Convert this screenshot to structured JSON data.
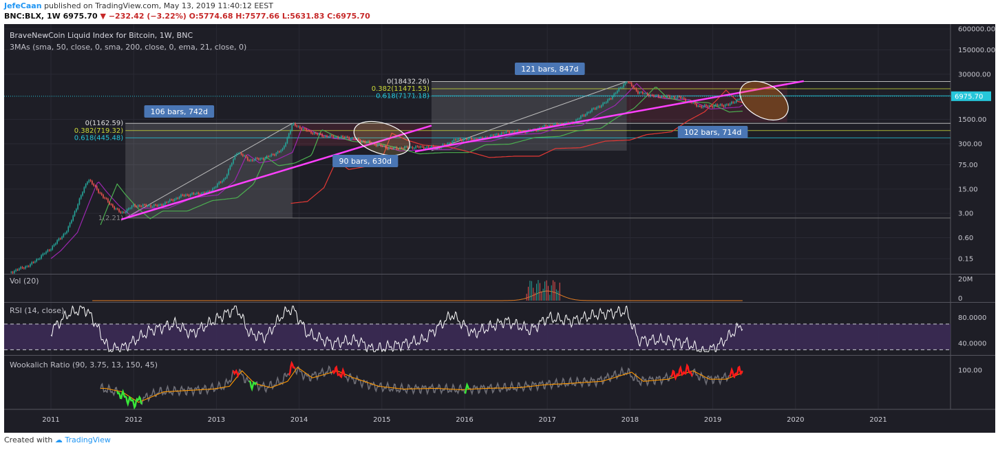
{
  "header": {
    "author": "JefeCaan",
    "published": "published on TradingView.com, May 13, 2019 11:40:12 EEST",
    "symbol": "BNC:BLX, 1W",
    "last": "6975.70",
    "change_arrow": "▼",
    "change": "−232.42 (−3.22%)",
    "ohlc": "O:5774.68 H:7577.66 L:5631.83 C:6975.70"
  },
  "footer": {
    "created_with": "Created with",
    "brand": "TradingView"
  },
  "colors": {
    "background": "#1e1e26",
    "grid": "#2a2a34",
    "text": "#c8c8d0",
    "bull": "#26a69a",
    "bear": "#ef5350",
    "sma50": "#4caf50",
    "sma200": "#e53935",
    "ema21": "#9c27b0",
    "trendline": "#ff40ff",
    "fib0": "#e0e0e0",
    "fib382": "#cddc39",
    "fib618": "#26c6da",
    "price_line": "#26c6da",
    "label_bg": "#4a76b4",
    "rsi_band": "#3b2a55",
    "vol": "#e67e22",
    "wook_grey": "#6e6e76",
    "wook_orange": "#ff9800",
    "wook_red": "#ff1a1a",
    "wook_green": "#39e639"
  },
  "chart_data": [
    {
      "type": "candlestick",
      "title": "BraveNewCoin Liquid Index for Bitcoin, 1W, BNC",
      "indicator_label": "3MAs (sma, 50, close, 0, sma, 200, close, 0, ema, 21, close, 0)",
      "scale": "log",
      "x_ticks": [
        "2011",
        "2012",
        "2013",
        "2014",
        "2015",
        "2016",
        "2017",
        "2018",
        "2019",
        "2020",
        "2021"
      ],
      "y_ticks": [
        "600000.00",
        "150000.00",
        "30000.00",
        "1500.00",
        "300.00",
        "75.00",
        "15.00",
        "3.00",
        "0.60",
        "0.15"
      ],
      "y_tick_values": [
        600000,
        150000,
        30000,
        1500,
        300,
        75,
        15,
        3,
        0.6,
        0.15
      ],
      "last_price_label": "6975.70",
      "last_price": 6975.7,
      "price_path": [
        [
          2010.5,
          0.06
        ],
        [
          2010.75,
          0.1
        ],
        [
          2011.0,
          0.3
        ],
        [
          2011.2,
          1.0
        ],
        [
          2011.35,
          8
        ],
        [
          2011.45,
          30
        ],
        [
          2011.55,
          15
        ],
        [
          2011.7,
          6
        ],
        [
          2011.85,
          3
        ],
        [
          2012.0,
          5
        ],
        [
          2012.3,
          5
        ],
        [
          2012.6,
          10
        ],
        [
          2012.9,
          12
        ],
        [
          2013.1,
          30
        ],
        [
          2013.25,
          180
        ],
        [
          2013.4,
          100
        ],
        [
          2013.6,
          120
        ],
        [
          2013.8,
          200
        ],
        [
          2013.92,
          1100
        ],
        [
          2014.1,
          700
        ],
        [
          2014.3,
          500
        ],
        [
          2014.6,
          450
        ],
        [
          2014.9,
          300
        ],
        [
          2015.1,
          220
        ],
        [
          2015.4,
          240
        ],
        [
          2015.7,
          240
        ],
        [
          2015.9,
          400
        ],
        [
          2016.2,
          420
        ],
        [
          2016.5,
          650
        ],
        [
          2016.8,
          700
        ],
        [
          2017.0,
          1000
        ],
        [
          2017.3,
          1200
        ],
        [
          2017.5,
          2500
        ],
        [
          2017.7,
          4500
        ],
        [
          2017.85,
          10000
        ],
        [
          2017.96,
          19000
        ],
        [
          2018.1,
          9000
        ],
        [
          2018.3,
          7000
        ],
        [
          2018.6,
          6500
        ],
        [
          2018.85,
          3500
        ],
        [
          2019.0,
          3700
        ],
        [
          2019.2,
          4000
        ],
        [
          2019.36,
          6975.7
        ]
      ],
      "fib_2012_2013": [
        {
          "label": "0(1162.59)",
          "value": 1162.59
        },
        {
          "label": "0.382(719.32)",
          "value": 719.32
        },
        {
          "label": "0.618(445.48)",
          "value": 445.48
        },
        {
          "label": "1(2.21)",
          "value": 2.21
        }
      ],
      "fib_2015_2017": [
        {
          "label": "0(18432.26)",
          "value": 18432.26
        },
        {
          "label": "0.382(11471.53)",
          "value": 11471.53
        },
        {
          "label": "0.618(7171.18)",
          "value": 7171.18
        }
      ],
      "annotations": [
        "106 bars, 742d",
        "90 bars, 630d",
        "121 bars, 847d",
        "102 bars, 714d"
      ]
    },
    {
      "type": "bar",
      "title": "Vol (20)",
      "y_ticks": [
        "20M",
        "0"
      ],
      "note": "volume negligible except spike around 2016.9-2017.1"
    },
    {
      "type": "line",
      "title": "RSI (14, close)",
      "y_ticks": [
        "80.0000",
        "40.0000"
      ],
      "bands": [
        70,
        30
      ],
      "values": [
        [
          2011.0,
          60
        ],
        [
          2011.2,
          85
        ],
        [
          2011.4,
          95
        ],
        [
          2011.5,
          80
        ],
        [
          2011.7,
          30
        ],
        [
          2011.9,
          35
        ],
        [
          2012.2,
          60
        ],
        [
          2012.5,
          70
        ],
        [
          2012.7,
          55
        ],
        [
          2012.9,
          70
        ],
        [
          2013.1,
          85
        ],
        [
          2013.25,
          95
        ],
        [
          2013.4,
          55
        ],
        [
          2013.6,
          50
        ],
        [
          2013.8,
          85
        ],
        [
          2013.92,
          95
        ],
        [
          2014.1,
          55
        ],
        [
          2014.4,
          40
        ],
        [
          2014.7,
          45
        ],
        [
          2014.9,
          30
        ],
        [
          2015.1,
          35
        ],
        [
          2015.5,
          45
        ],
        [
          2015.85,
          85
        ],
        [
          2016.1,
          55
        ],
        [
          2016.5,
          75
        ],
        [
          2016.8,
          60
        ],
        [
          2017.0,
          80
        ],
        [
          2017.3,
          75
        ],
        [
          2017.6,
          85
        ],
        [
          2017.96,
          90
        ],
        [
          2018.1,
          45
        ],
        [
          2018.4,
          45
        ],
        [
          2018.7,
          40
        ],
        [
          2018.9,
          25
        ],
        [
          2019.1,
          40
        ],
        [
          2019.36,
          70
        ]
      ]
    },
    {
      "type": "line",
      "title": "Wookalich Ratio (90, 3.75, 13, 150, 45)",
      "y_ticks": [
        "100.00"
      ],
      "values": [
        [
          2011.6,
          75
        ],
        [
          2011.8,
          70
        ],
        [
          2012.0,
          55
        ],
        [
          2012.3,
          70
        ],
        [
          2012.6,
          72
        ],
        [
          2012.9,
          74
        ],
        [
          2013.1,
          78
        ],
        [
          2013.25,
          100
        ],
        [
          2013.4,
          82
        ],
        [
          2013.6,
          76
        ],
        [
          2013.8,
          85
        ],
        [
          2013.92,
          105
        ],
        [
          2014.1,
          90
        ],
        [
          2014.4,
          100
        ],
        [
          2014.6,
          90
        ],
        [
          2014.9,
          78
        ],
        [
          2015.2,
          74
        ],
        [
          2015.6,
          75
        ],
        [
          2015.9,
          73
        ],
        [
          2016.2,
          75
        ],
        [
          2016.6,
          76
        ],
        [
          2016.9,
          80
        ],
        [
          2017.2,
          82
        ],
        [
          2017.6,
          85
        ],
        [
          2017.96,
          98
        ],
        [
          2018.1,
          85
        ],
        [
          2018.4,
          88
        ],
        [
          2018.7,
          100
        ],
        [
          2018.9,
          88
        ],
        [
          2019.1,
          88
        ],
        [
          2019.36,
          100
        ]
      ],
      "red_highlights": [
        [
          2013.2,
          2013.27
        ],
        [
          2013.88,
          2013.95
        ],
        [
          2014.4,
          2014.55
        ],
        [
          2018.5,
          2018.75
        ],
        [
          2019.2,
          2019.36
        ]
      ],
      "green_highlights": [
        [
          2011.8,
          2012.1
        ],
        [
          2013.4,
          2013.48
        ],
        [
          2016.0,
          2016.05
        ]
      ]
    }
  ]
}
